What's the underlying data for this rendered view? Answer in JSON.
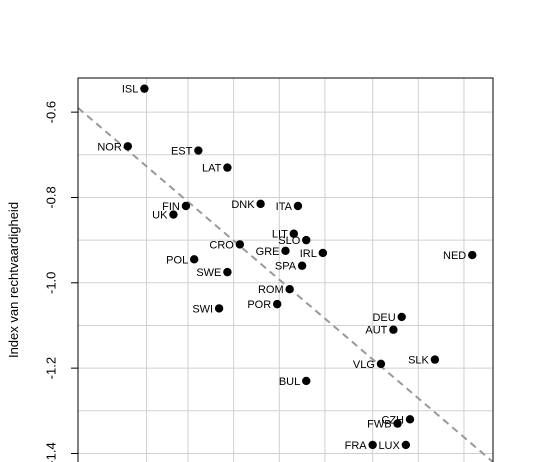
{
  "chart_data": {
    "type": "scatter",
    "title": "",
    "xlabel": "",
    "ylabel": "Index van rechtvaardigheid",
    "ylim": [
      -1.42,
      -0.52
    ],
    "y_ticks": [
      -0.6,
      -0.8,
      -1.0,
      -1.2,
      -1.4
    ],
    "y_tick_labels": [
      "-0.6",
      "-0.8",
      "-1.0",
      "-1.2",
      "-1.4"
    ],
    "x_axis_visible": false,
    "grid": true,
    "trend_line": {
      "style": "dashed",
      "color": "#999999",
      "y_at_left_edge": -0.59,
      "y_at_right_edge": -1.42
    },
    "point_color": "#000000",
    "points": [
      {
        "label": "ISL",
        "x": 0.16,
        "y": -0.545
      },
      {
        "label": "NOR",
        "x": 0.12,
        "y": -0.68
      },
      {
        "label": "EST",
        "x": 0.29,
        "y": -0.69
      },
      {
        "label": "LAT",
        "x": 0.36,
        "y": -0.73
      },
      {
        "label": "FIN",
        "x": 0.26,
        "y": -0.82
      },
      {
        "label": "UK",
        "x": 0.23,
        "y": -0.84
      },
      {
        "label": "DNK",
        "x": 0.44,
        "y": -0.815
      },
      {
        "label": "ITA",
        "x": 0.53,
        "y": -0.82
      },
      {
        "label": "LIT",
        "x": 0.52,
        "y": -0.885
      },
      {
        "label": "SLO",
        "x": 0.55,
        "y": -0.9
      },
      {
        "label": "GRE",
        "x": 0.5,
        "y": -0.925
      },
      {
        "label": "IRL",
        "x": 0.59,
        "y": -0.93
      },
      {
        "label": "CRO",
        "x": 0.39,
        "y": -0.91
      },
      {
        "label": "POL",
        "x": 0.28,
        "y": -0.945
      },
      {
        "label": "SPA",
        "x": 0.54,
        "y": -0.96
      },
      {
        "label": "SWE",
        "x": 0.36,
        "y": -0.975
      },
      {
        "label": "NED",
        "x": 0.95,
        "y": -0.935
      },
      {
        "label": "ROM",
        "x": 0.51,
        "y": -1.015
      },
      {
        "label": "POR",
        "x": 0.48,
        "y": -1.05
      },
      {
        "label": "SWI",
        "x": 0.34,
        "y": -1.06
      },
      {
        "label": "DEU",
        "x": 0.78,
        "y": -1.08
      },
      {
        "label": "AUT",
        "x": 0.76,
        "y": -1.11
      },
      {
        "label": "SLK",
        "x": 0.86,
        "y": -1.18
      },
      {
        "label": "VLG",
        "x": 0.73,
        "y": -1.19
      },
      {
        "label": "BUL",
        "x": 0.55,
        "y": -1.23
      },
      {
        "label": "CZH",
        "x": 0.8,
        "y": -1.32
      },
      {
        "label": "FWB",
        "x": 0.77,
        "y": -1.33
      },
      {
        "label": "FRA",
        "x": 0.71,
        "y": -1.38
      },
      {
        "label": "LUX",
        "x": 0.79,
        "y": -1.38
      }
    ]
  }
}
